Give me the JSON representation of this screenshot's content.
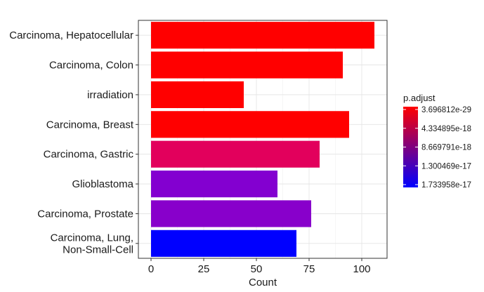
{
  "chart_data": {
    "type": "bar",
    "orientation": "horizontal",
    "categories": [
      "Carcinoma, Hepatocellular",
      "Carcinoma, Colon",
      "irradiation",
      "Carcinoma, Breast",
      "Carcinoma, Gastric",
      "Glioblastoma",
      "Carcinoma, Prostate",
      [
        "Carcinoma, Lung,",
        "Non-Small-Cell"
      ]
    ],
    "values": [
      106,
      91,
      44,
      94,
      80,
      60,
      76,
      69
    ],
    "colors": [
      "#FF0000",
      "#FF0000",
      "#FF0000",
      "#FF0000",
      "#E2005C",
      "#8300D0",
      "#8800CB",
      "#0000FF"
    ],
    "xlabel": "Count",
    "xlim": [
      -6,
      112
    ],
    "x_ticks": [
      0,
      25,
      50,
      75,
      100
    ],
    "grid": true,
    "legend": {
      "title": "p.adjust",
      "position": "right",
      "labels": [
        "3.696812e-29",
        "4.334895e-18",
        "8.669791e-18",
        "1.300469e-17",
        "1.733958e-17"
      ],
      "gradient_colors": [
        "#FF0000",
        "#0000FF"
      ]
    }
  }
}
